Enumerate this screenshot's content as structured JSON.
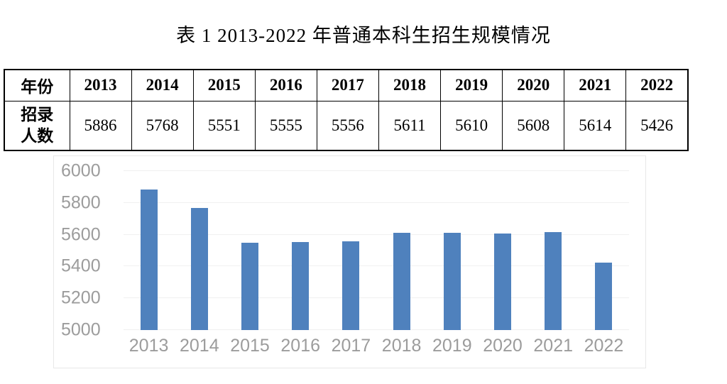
{
  "title": "表 1  2013-2022 年普通本科生招生规模情况",
  "table": {
    "header_label": "年份",
    "row_label_lines": [
      "招录",
      "人数"
    ],
    "years": [
      "2013",
      "2014",
      "2015",
      "2016",
      "2017",
      "2018",
      "2019",
      "2020",
      "2021",
      "2022"
    ],
    "values": [
      "5886",
      "5768",
      "5551",
      "5555",
      "5556",
      "5611",
      "5610",
      "5608",
      "5614",
      "5426"
    ]
  },
  "chart_data": {
    "type": "bar",
    "title": "",
    "categories": [
      "2013",
      "2014",
      "2015",
      "2016",
      "2017",
      "2018",
      "2019",
      "2020",
      "2021",
      "2022"
    ],
    "values": [
      5886,
      5768,
      5551,
      5555,
      5556,
      5611,
      5610,
      5608,
      5614,
      5426
    ],
    "xlabel": "",
    "ylabel": "",
    "ylim": [
      5000,
      6000
    ],
    "yticks": [
      5000,
      5200,
      5400,
      5600,
      5800,
      6000
    ],
    "grid": true,
    "legend": false,
    "bar_color": "#4F81BD",
    "axis_label_color": "#9c9c9c",
    "gridline_color": "#f0f0f0",
    "panel_border_color": "#e8e8e8"
  }
}
